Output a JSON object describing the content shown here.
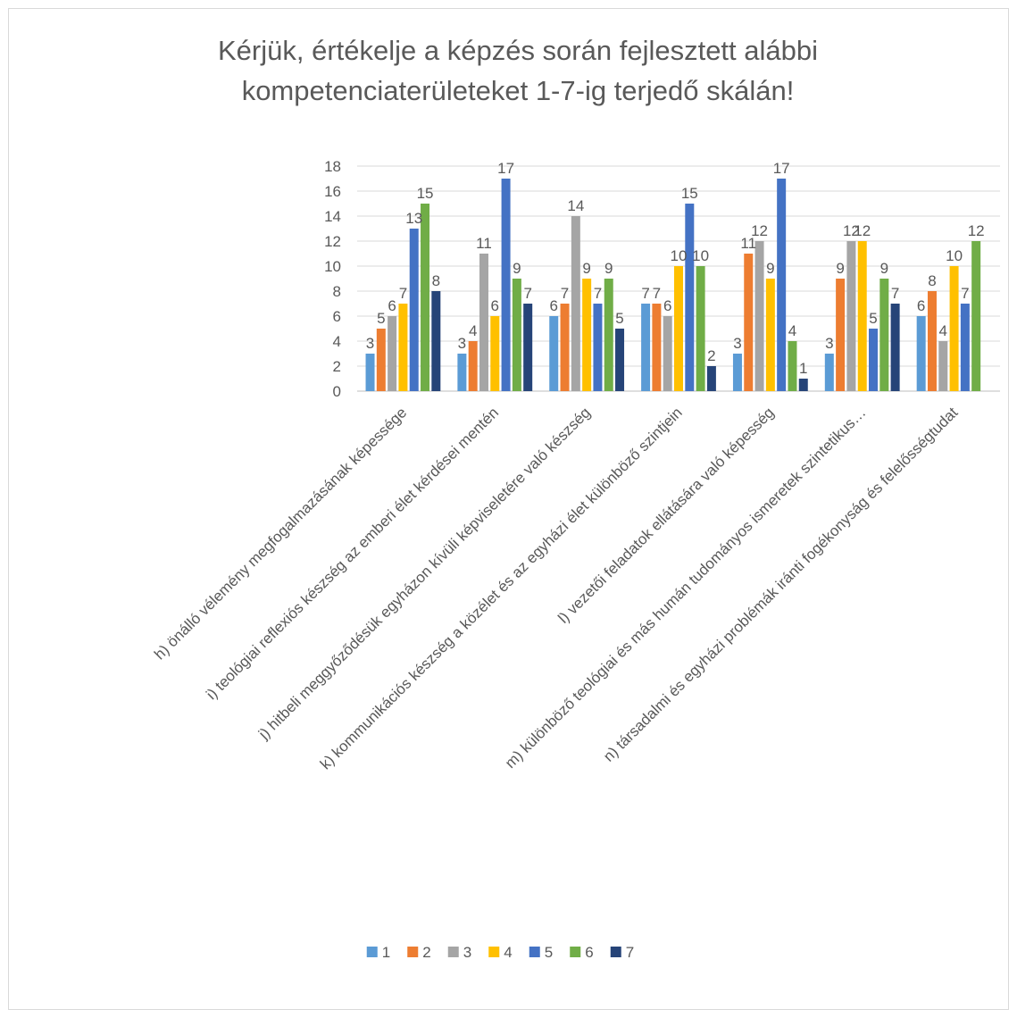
{
  "chart_data": {
    "type": "bar",
    "title": "Kérjük, értékelje a képzés során fejlesztett alábbi kompetenciaterületeket 1-7-ig terjedő skálán!",
    "title_lines": [
      "Kérjük, értékelje a képzés során fejlesztett alábbi",
      "kompetenciaterületeket 1-7-ig terjedő skálán!"
    ],
    "categories": [
      "h) önálló vélemény megfogalmazásának képessége",
      "i) teológiai reflexiós készség az emberi élet kérdései mentén",
      "j) hitbeli meggyőződésük egyházon kívüli képviseletére való készség",
      "k) kommunikációs készség a közélet és az egyházi élet különböző szintjein",
      "l) vezetői feladatok ellátására való képesség",
      "m) különböző teológiai és más humán tudományos ismeretek szintetikus…",
      "n) társadalmi és egyházi problémák iránti fogékonyság és felelősségtudat"
    ],
    "series": [
      {
        "name": "1",
        "color": "#5B9BD5",
        "values": [
          3,
          3,
          6,
          7,
          3,
          3,
          6
        ]
      },
      {
        "name": "2",
        "color": "#ED7D31",
        "values": [
          5,
          4,
          7,
          7,
          11,
          9,
          8
        ]
      },
      {
        "name": "3",
        "color": "#A5A5A5",
        "values": [
          6,
          11,
          14,
          6,
          12,
          12,
          4
        ]
      },
      {
        "name": "4",
        "color": "#FFC000",
        "values": [
          7,
          6,
          9,
          10,
          9,
          12,
          10
        ]
      },
      {
        "name": "5",
        "color": "#4472C4",
        "values": [
          13,
          17,
          7,
          15,
          17,
          5,
          7
        ]
      },
      {
        "name": "6",
        "color": "#70AD47",
        "values": [
          15,
          9,
          9,
          10,
          4,
          9,
          12
        ]
      },
      {
        "name": "7",
        "color": "#264478",
        "values": [
          8,
          7,
          5,
          2,
          1,
          7,
          null
        ]
      }
    ],
    "ylim": [
      0,
      18
    ],
    "yticks": [
      0,
      2,
      4,
      6,
      8,
      10,
      12,
      14,
      16,
      18
    ],
    "grid": true,
    "data_labels": true,
    "legend_position": "bottom",
    "xlabel": "",
    "ylabel": ""
  }
}
